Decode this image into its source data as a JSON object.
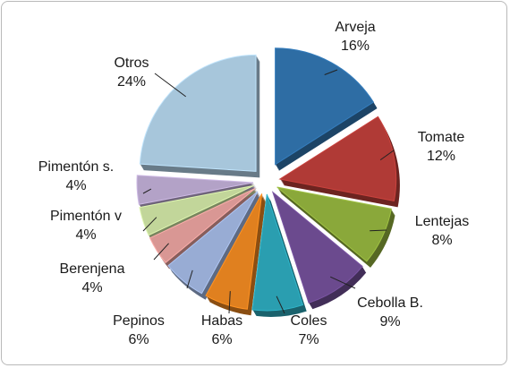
{
  "chart_data": {
    "type": "pie",
    "exploded": true,
    "three_d": true,
    "legend": "none",
    "slices": [
      {
        "name": "Arveja",
        "percent_label": "16%",
        "value": 16,
        "color": "#2e6da4"
      },
      {
        "name": "Tomate",
        "percent_label": "12%",
        "value": 12,
        "color": "#b03a36"
      },
      {
        "name": "Lentejas",
        "percent_label": "8%",
        "value": 8,
        "color": "#8aa83a"
      },
      {
        "name": "Cebolla B.",
        "percent_label": "9%",
        "value": 9,
        "color": "#6b4a8e"
      },
      {
        "name": "Coles",
        "percent_label": "7%",
        "value": 7,
        "color": "#2a9eb0"
      },
      {
        "name": "Habas",
        "percent_label": "6%",
        "value": 6,
        "color": "#e0801f"
      },
      {
        "name": "Pepinos",
        "percent_label": "6%",
        "value": 6,
        "color": "#98acd4"
      },
      {
        "name": "Berenjena",
        "percent_label": "4%",
        "value": 4,
        "color": "#d99794"
      },
      {
        "name": "Pimentón v",
        "percent_label": "4%",
        "value": 4,
        "color": "#c2d69a"
      },
      {
        "name": "Pimentón s.",
        "percent_label": "4%",
        "value": 4,
        "color": "#b3a2c7"
      },
      {
        "name": "Otros",
        "percent_label": "24%",
        "value": 24,
        "color": "#a7c6db"
      }
    ]
  }
}
